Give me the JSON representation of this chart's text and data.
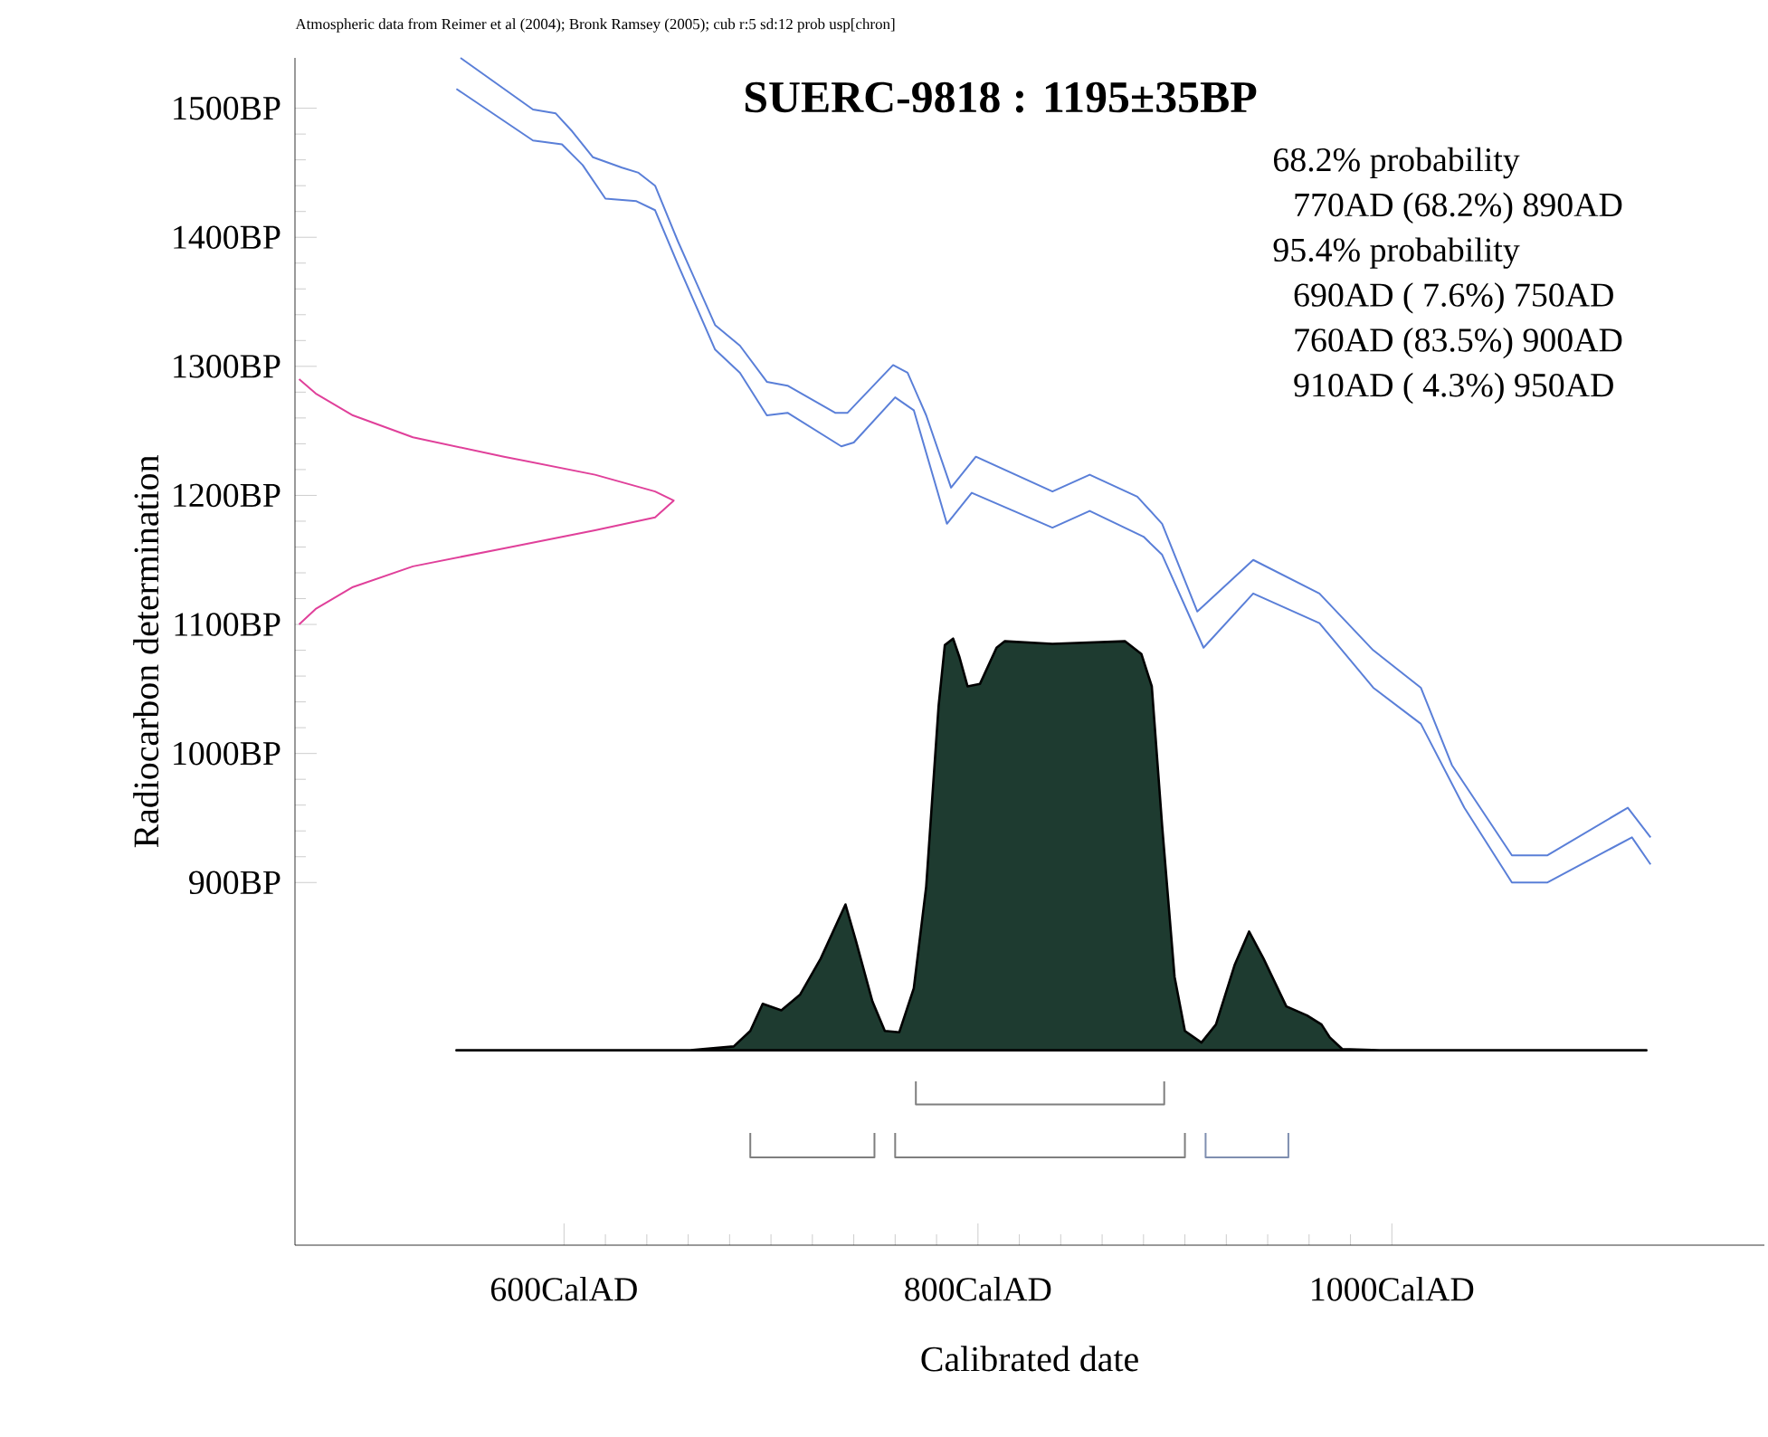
{
  "chart_data": {
    "type": "line",
    "title": "SUERC-9818 : 1195±35BP",
    "xlabel": "Calibrated date",
    "ylabel": "Radiocarbon determination",
    "xlim": [
      470,
      1180
    ],
    "ylim": [
      619,
      1539
    ],
    "xticks": [
      {
        "value": 600,
        "label": "600CalAD"
      },
      {
        "value": 800,
        "label": "800CalAD"
      },
      {
        "value": 1000,
        "label": "1000CalAD"
      }
    ],
    "yticks": [
      {
        "value": 900,
        "label": "900BP"
      },
      {
        "value": 1000,
        "label": "1000BP"
      },
      {
        "value": 1100,
        "label": "1100BP"
      },
      {
        "value": 1200,
        "label": "1200BP"
      },
      {
        "value": 1300,
        "label": "1300BP"
      },
      {
        "value": 1400,
        "label": "1400BP"
      },
      {
        "value": 1500,
        "label": "1500BP"
      }
    ],
    "annotations": [
      "Atmospheric data from Reimer et al (2004); Bronk Ramsey (2005); cub r:5 sd:12 prob usp[chron]",
      "68.2% probability",
      "770AD (68.2%) 890AD",
      "95.4% probability",
      "690AD ( 7.6%) 750AD",
      "760AD (83.5%) 900AD",
      "910AD ( 4.3%) 950AD"
    ],
    "series": [
      {
        "color": "#5a7fd8",
        "x": [
          550,
          585,
          596,
          604,
          614,
          628,
          636,
          644,
          655,
          673,
          685,
          698,
          708,
          731,
          737,
          759,
          766,
          775,
          787,
          799,
          836,
          854,
          877,
          889,
          906,
          933,
          965,
          991,
          1014,
          1029,
          1058,
          1075,
          1114,
          1125
        ],
        "values": [
          1539,
          1499,
          1496,
          1482,
          1462,
          1454,
          1450,
          1440,
          1397,
          1332,
          1316,
          1288,
          1285,
          1264,
          1264,
          1301,
          1295,
          1262,
          1206,
          1230,
          1203,
          1216,
          1199,
          1178,
          1110,
          1150,
          1124,
          1080,
          1051,
          991,
          921,
          921,
          958,
          935
        ]
      },
      {
        "color": "#5a7fd8",
        "x": [
          548,
          585,
          599,
          609,
          620,
          635,
          644,
          655,
          673,
          685,
          698,
          708,
          734,
          740,
          760,
          769,
          785,
          797,
          836,
          854,
          880,
          889,
          909,
          933,
          965,
          991,
          1014,
          1035,
          1058,
          1075,
          1116,
          1125
        ],
        "values": [
          1515,
          1475,
          1472,
          1456,
          1430,
          1428,
          1421,
          1379,
          1313,
          1295,
          1262,
          1264,
          1238,
          1241,
          1276,
          1266,
          1178,
          1202,
          1175,
          1188,
          1168,
          1154,
          1082,
          1124,
          1101,
          1051,
          1023,
          958,
          900,
          900,
          935,
          914
        ]
      },
      {
        "color": "#e0409a",
        "x": [
          472,
          480,
          498,
          527,
          571,
          615,
          644,
          653,
          644,
          615,
          571,
          527,
          498,
          480,
          472
        ],
        "values": [
          1290,
          1279,
          1262,
          1245,
          1230,
          1216,
          1203,
          1196,
          1183,
          1173,
          1159,
          1145,
          1129,
          1112,
          1100
        ]
      },
      {
        "type": "area",
        "color": "#1e3b30",
        "x": [
          548,
          661,
          682,
          690,
          696,
          705,
          714,
          724,
          736,
          741,
          749,
          755,
          762,
          769,
          775,
          781,
          784,
          788,
          791,
          795,
          801,
          809,
          813,
          836,
          871,
          879,
          884,
          889,
          895,
          900,
          908,
          915,
          924,
          931,
          938,
          949,
          959,
          966,
          970,
          976,
          994,
          1123
        ],
        "values": [
          770,
          770,
          773,
          785,
          806,
          801,
          813,
          841,
          883,
          855,
          808,
          785,
          784,
          818,
          897,
          1037,
          1084,
          1089,
          1075,
          1052,
          1054,
          1082,
          1087,
          1085,
          1087,
          1077,
          1052,
          944,
          827,
          785,
          776,
          790,
          836,
          862,
          841,
          804,
          797,
          790,
          780,
          771,
          770,
          770
        ]
      },
      {
        "color": "#7f7f7f",
        "x": [
          770,
          770,
          890,
          890
        ],
        "values": [
          746,
          728,
          728,
          746
        ]
      },
      {
        "color": "#7f7f7f",
        "x": [
          690,
          690,
          750,
          750
        ],
        "values": [
          706,
          687,
          687,
          706
        ]
      },
      {
        "color": "#7f7f7f",
        "x": [
          760,
          760,
          900,
          900
        ],
        "values": [
          706,
          687,
          687,
          706
        ]
      },
      {
        "color": "#7f8fb0",
        "x": [
          910,
          910,
          950,
          950
        ],
        "values": [
          706,
          687,
          687,
          706
        ]
      }
    ]
  }
}
